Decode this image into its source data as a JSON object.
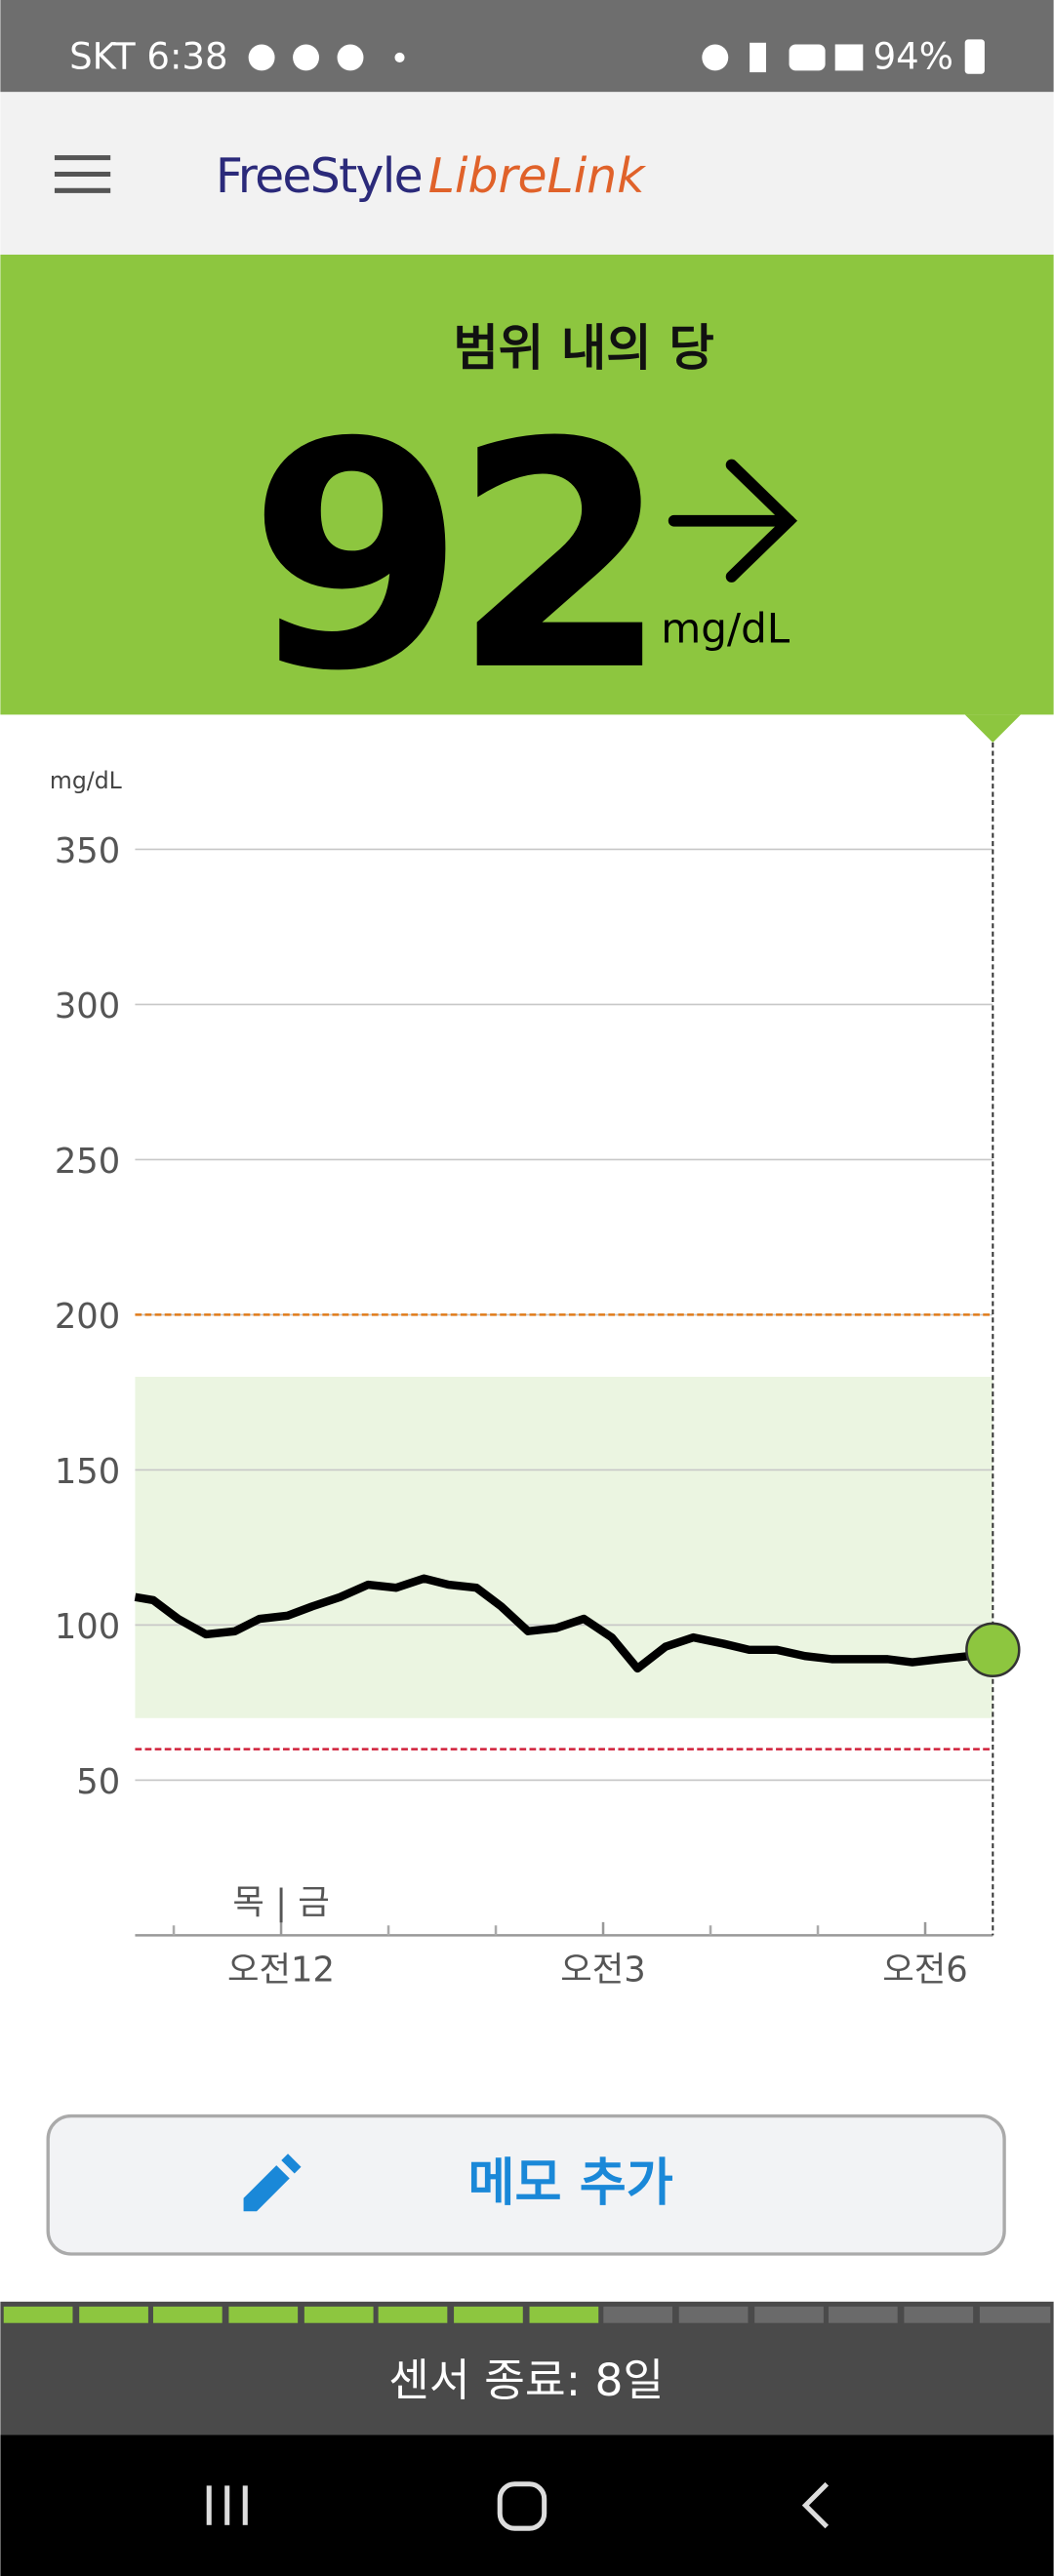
{
  "status_bar": {
    "carrier_time": "SKT 6:38",
    "battery": "94%"
  },
  "app_bar": {
    "brand_1": "FreeStyle",
    "brand_2": "LibreLink"
  },
  "reading": {
    "label": "범위 내의 당",
    "value": 92,
    "unit": "mg/dL"
  },
  "chart_data": {
    "type": "line",
    "y_label": "mg/dL",
    "day_divider": "목 | 금",
    "x": [
      -1.36,
      -1.19,
      -0.96,
      -0.7,
      -0.43,
      -0.2,
      0.06,
      0.29,
      0.55,
      0.81,
      1.07,
      1.33,
      1.56,
      1.82,
      2.05,
      2.3,
      2.56,
      2.82,
      3.08,
      3.32,
      3.58,
      3.84,
      4.12,
      4.36,
      4.62,
      4.88,
      5.13,
      5.39,
      5.65,
      5.88,
      6.14,
      6.41,
      6.63
    ],
    "series": [
      {
        "name": "glucose",
        "color": "#000000",
        "values": [
          109,
          108,
          102,
          97,
          98,
          102,
          103,
          106,
          109,
          113,
          112,
          115,
          113,
          112,
          106,
          98,
          99,
          102,
          96,
          86,
          93,
          96,
          94,
          92,
          92,
          90,
          89,
          89,
          89,
          88,
          89,
          90,
          92
        ]
      }
    ],
    "xlim": [
      -1.36,
      6.63
    ],
    "xticks": [
      {
        "value": 0,
        "label": "오전12"
      },
      {
        "value": 3,
        "label": "오전3"
      },
      {
        "value": 6,
        "label": "오전6"
      }
    ],
    "xminor_ticks": [
      -1,
      1,
      2,
      4,
      5
    ],
    "ylim": [
      0,
      350
    ],
    "yticks": [
      50,
      100,
      150,
      200,
      250,
      300,
      350
    ],
    "grid": true,
    "target_range": [
      70,
      180
    ],
    "target_color": "#ebf5e1",
    "high_threshold": 200,
    "high_color": "#e07b1a",
    "low_threshold": 60,
    "low_color": "#d0213b",
    "current_color": "#8dc63f"
  },
  "memo_button": {
    "label": "메모 추가"
  },
  "sensor": {
    "label": "센서 종료: 8일"
  }
}
